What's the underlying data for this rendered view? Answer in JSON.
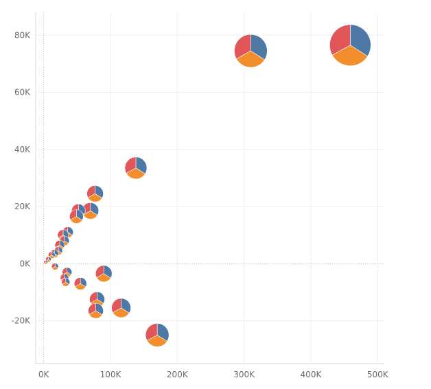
{
  "chart_data": {
    "type": "scatter",
    "marker": "pie",
    "title": "",
    "xlabel": "",
    "ylabel": "",
    "xlim": [
      -12000,
      510000
    ],
    "ylim": [
      -35000,
      88000
    ],
    "x_ticks": [
      0,
      100000,
      200000,
      300000,
      400000,
      500000
    ],
    "x_tick_labels": [
      "0K",
      "100K",
      "200K",
      "300K",
      "400K",
      "500K"
    ],
    "y_ticks": [
      80000,
      60000,
      40000,
      20000,
      0,
      -20000
    ],
    "y_tick_labels": [
      "80K",
      "60K",
      "40K",
      "20K",
      "0K",
      "-20K"
    ],
    "grid": true,
    "zero_lines": true,
    "slice_colors": [
      "#4e79a7",
      "#f28e2b",
      "#e15759"
    ],
    "points": [
      {
        "x": 459000,
        "y": 76500,
        "size": 30,
        "shares": [
          0.34,
          0.33,
          0.33
        ]
      },
      {
        "x": 310000,
        "y": 74500,
        "size": 24,
        "shares": [
          0.34,
          0.33,
          0.33
        ]
      },
      {
        "x": 138000,
        "y": 33500,
        "size": 16,
        "shares": [
          0.34,
          0.33,
          0.33
        ]
      },
      {
        "x": 170000,
        "y": -25000,
        "size": 17,
        "shares": [
          0.34,
          0.33,
          0.33
        ]
      },
      {
        "x": 77000,
        "y": 24500,
        "size": 12,
        "shares": [
          0.34,
          0.33,
          0.33
        ]
      },
      {
        "x": 70000,
        "y": 18500,
        "size": 12,
        "shares": [
          0.34,
          0.33,
          0.33
        ]
      },
      {
        "x": 52000,
        "y": 18500,
        "size": 10,
        "shares": [
          0.34,
          0.33,
          0.33
        ]
      },
      {
        "x": 49000,
        "y": 16500,
        "size": 10,
        "shares": [
          0.34,
          0.33,
          0.33
        ]
      },
      {
        "x": 36000,
        "y": 11000,
        "size": 8,
        "shares": [
          0.34,
          0.33,
          0.33
        ]
      },
      {
        "x": 29000,
        "y": 10000,
        "size": 8,
        "shares": [
          0.34,
          0.33,
          0.33
        ]
      },
      {
        "x": 31000,
        "y": 8000,
        "size": 7,
        "shares": [
          0.34,
          0.33,
          0.33
        ]
      },
      {
        "x": 24000,
        "y": 6500,
        "size": 7,
        "shares": [
          0.34,
          0.33,
          0.33
        ]
      },
      {
        "x": 22000,
        "y": 4500,
        "size": 6,
        "shares": [
          0.34,
          0.33,
          0.33
        ]
      },
      {
        "x": 16000,
        "y": 3500,
        "size": 6,
        "shares": [
          0.34,
          0.33,
          0.33
        ]
      },
      {
        "x": 12000,
        "y": 3000,
        "size": 5,
        "shares": [
          0.34,
          0.33,
          0.33
        ]
      },
      {
        "x": 7000,
        "y": 1500,
        "size": 4,
        "shares": [
          0.34,
          0.33,
          0.33
        ]
      },
      {
        "x": 3000,
        "y": 500,
        "size": 3,
        "shares": [
          0.34,
          0.33,
          0.33
        ]
      },
      {
        "x": 17000,
        "y": -1000,
        "size": 5,
        "shares": [
          0.34,
          0.33,
          0.33
        ]
      },
      {
        "x": 35000,
        "y": -3000,
        "size": 7,
        "shares": [
          0.34,
          0.33,
          0.33
        ]
      },
      {
        "x": 90000,
        "y": -3500,
        "size": 12,
        "shares": [
          0.34,
          0.33,
          0.33
        ]
      },
      {
        "x": 31000,
        "y": -5000,
        "size": 6,
        "shares": [
          0.34,
          0.33,
          0.33
        ]
      },
      {
        "x": 33000,
        "y": -6500,
        "size": 6,
        "shares": [
          0.34,
          0.33,
          0.33
        ]
      },
      {
        "x": 55000,
        "y": -7000,
        "size": 9,
        "shares": [
          0.34,
          0.33,
          0.33
        ]
      },
      {
        "x": 80000,
        "y": -12500,
        "size": 11,
        "shares": [
          0.34,
          0.33,
          0.33
        ]
      },
      {
        "x": 78000,
        "y": -16500,
        "size": 11,
        "shares": [
          0.34,
          0.33,
          0.33
        ]
      },
      {
        "x": 116000,
        "y": -15500,
        "size": 14,
        "shares": [
          0.34,
          0.33,
          0.33
        ]
      }
    ]
  }
}
